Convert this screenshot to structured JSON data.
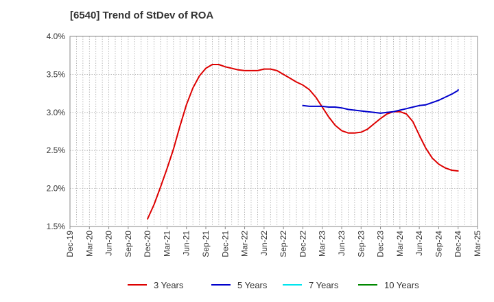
{
  "chart_data": {
    "type": "line",
    "title": "[6540]  Trend of StDev of ROA",
    "x_ticks": [
      "Dec-19",
      "Mar-20",
      "Jun-20",
      "Sep-20",
      "Dec-20",
      "Mar-21",
      "Jun-21",
      "Sep-21",
      "Dec-21",
      "Mar-22",
      "Jun-22",
      "Sep-22",
      "Dec-22",
      "Mar-23",
      "Jun-23",
      "Sep-23",
      "Dec-23",
      "Mar-24",
      "Jun-24",
      "Sep-24",
      "Dec-24",
      "Mar-25"
    ],
    "y_ticks": [
      "1.5%",
      "2.0%",
      "2.5%",
      "3.0%",
      "3.5%",
      "4.0%"
    ],
    "ylim": [
      1.5,
      4.0
    ],
    "xlim": [
      "2019-12",
      "2025-03"
    ],
    "grid": true,
    "legend_position": "bottom",
    "series": [
      {
        "name": "3 Years",
        "color": "#dd0000",
        "points": [
          [
            "2020-12",
            1.6
          ],
          [
            "2021-01",
            1.79
          ],
          [
            "2021-02",
            2.02
          ],
          [
            "2021-03",
            2.26
          ],
          [
            "2021-04",
            2.52
          ],
          [
            "2021-05",
            2.82
          ],
          [
            "2021-06",
            3.1
          ],
          [
            "2021-07",
            3.32
          ],
          [
            "2021-08",
            3.48
          ],
          [
            "2021-09",
            3.58
          ],
          [
            "2021-10",
            3.63
          ],
          [
            "2021-11",
            3.63
          ],
          [
            "2021-12",
            3.6
          ],
          [
            "2022-01",
            3.58
          ],
          [
            "2022-02",
            3.56
          ],
          [
            "2022-03",
            3.55
          ],
          [
            "2022-04",
            3.55
          ],
          [
            "2022-05",
            3.55
          ],
          [
            "2022-06",
            3.57
          ],
          [
            "2022-07",
            3.57
          ],
          [
            "2022-08",
            3.55
          ],
          [
            "2022-09",
            3.5
          ],
          [
            "2022-10",
            3.45
          ],
          [
            "2022-11",
            3.4
          ],
          [
            "2022-12",
            3.36
          ],
          [
            "2023-01",
            3.3
          ],
          [
            "2023-02",
            3.2
          ],
          [
            "2023-03",
            3.07
          ],
          [
            "2023-04",
            2.94
          ],
          [
            "2023-05",
            2.83
          ],
          [
            "2023-06",
            2.76
          ],
          [
            "2023-07",
            2.73
          ],
          [
            "2023-08",
            2.73
          ],
          [
            "2023-09",
            2.74
          ],
          [
            "2023-10",
            2.78
          ],
          [
            "2023-11",
            2.85
          ],
          [
            "2023-12",
            2.92
          ],
          [
            "2024-01",
            2.98
          ],
          [
            "2024-02",
            3.01
          ],
          [
            "2024-03",
            3.01
          ],
          [
            "2024-04",
            2.98
          ],
          [
            "2024-05",
            2.88
          ],
          [
            "2024-06",
            2.7
          ],
          [
            "2024-07",
            2.53
          ],
          [
            "2024-08",
            2.4
          ],
          [
            "2024-09",
            2.32
          ],
          [
            "2024-10",
            2.27
          ],
          [
            "2024-11",
            2.24
          ],
          [
            "2024-12",
            2.23
          ]
        ]
      },
      {
        "name": "5 Years",
        "color": "#0000cc",
        "points": [
          [
            "2022-12",
            3.09
          ],
          [
            "2023-01",
            3.08
          ],
          [
            "2023-02",
            3.08
          ],
          [
            "2023-03",
            3.08
          ],
          [
            "2023-04",
            3.07
          ],
          [
            "2023-05",
            3.07
          ],
          [
            "2023-06",
            3.06
          ],
          [
            "2023-07",
            3.04
          ],
          [
            "2023-08",
            3.03
          ],
          [
            "2023-09",
            3.02
          ],
          [
            "2023-10",
            3.01
          ],
          [
            "2023-11",
            3.0
          ],
          [
            "2023-12",
            2.99
          ],
          [
            "2024-01",
            3.0
          ],
          [
            "2024-02",
            3.01
          ],
          [
            "2024-03",
            3.03
          ],
          [
            "2024-04",
            3.05
          ],
          [
            "2024-05",
            3.07
          ],
          [
            "2024-06",
            3.09
          ],
          [
            "2024-07",
            3.1
          ],
          [
            "2024-08",
            3.13
          ],
          [
            "2024-09",
            3.16
          ],
          [
            "2024-10",
            3.2
          ],
          [
            "2024-11",
            3.24
          ],
          [
            "2024-12",
            3.29
          ],
          [
            "2024-12",
            3.3
          ]
        ]
      },
      {
        "name": "7 Years",
        "color": "#00e5ee",
        "points": []
      },
      {
        "name": "10 Years",
        "color": "#008800",
        "points": []
      }
    ]
  }
}
